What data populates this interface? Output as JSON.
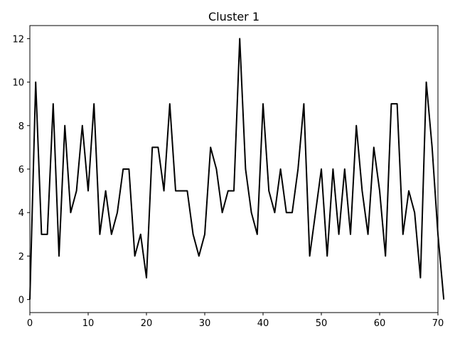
{
  "chart_data": {
    "type": "line",
    "title": "Cluster 1",
    "xlabel": "",
    "ylabel": "",
    "xlim": [
      0,
      70
    ],
    "ylim": [
      -0.6,
      12.6
    ],
    "x_ticks": [
      0,
      10,
      20,
      30,
      40,
      50,
      60,
      70
    ],
    "y_ticks": [
      0,
      2,
      4,
      6,
      8,
      10,
      12
    ],
    "grid": false,
    "line_color": "#000000",
    "series": [
      {
        "values": [
          0,
          10,
          3,
          3,
          9,
          2,
          8,
          4,
          5,
          8,
          5,
          9,
          3,
          5,
          3,
          4,
          6,
          6,
          2,
          3,
          1,
          7,
          7,
          5,
          9,
          5,
          5,
          5,
          3,
          2,
          3,
          7,
          6,
          4,
          5,
          5,
          12,
          6,
          4,
          3,
          9,
          5,
          4,
          6,
          4,
          4,
          6,
          9,
          2,
          4,
          6,
          2,
          6,
          3,
          6,
          3,
          8,
          5,
          3,
          7,
          5,
          2,
          9,
          9,
          3,
          5,
          4,
          1,
          10,
          7,
          3,
          0
        ]
      }
    ]
  }
}
